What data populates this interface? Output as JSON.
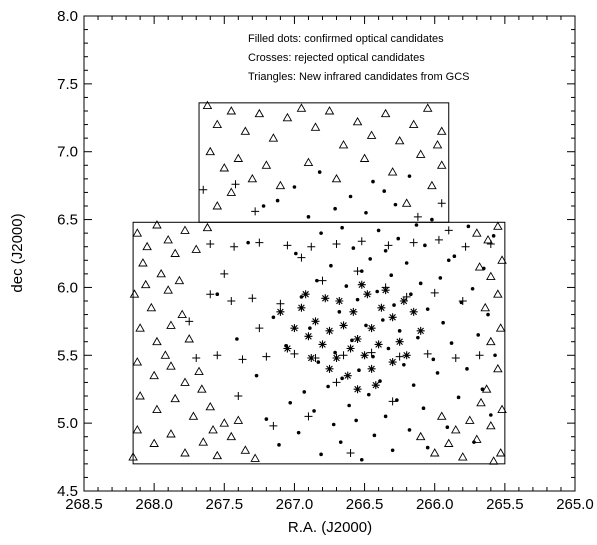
{
  "chart_data": {
    "type": "scatter",
    "title": "",
    "xlabel": "R.A. (J2000)",
    "ylabel": "dec (J2000)",
    "xlim": [
      268.5,
      265.0
    ],
    "ylim": [
      4.5,
      8.0
    ],
    "x_inverted": true,
    "x_ticks": [
      "268.5",
      "268.0",
      "267.5",
      "267.0",
      "266.5",
      "266.0",
      "265.5",
      "265.0"
    ],
    "y_ticks": [
      "4.5",
      "5.0",
      "5.5",
      "6.0",
      "6.5",
      "7.0",
      "7.5",
      "8.0"
    ],
    "annotations": [
      "Filled dots: confirmed optical candidates",
      "Crosses: rejected optical candidates",
      "Triangles: New infrared candidates from GCS"
    ],
    "survey_regions": [
      {
        "ra_min": 265.5,
        "ra_max": 268.15,
        "dec_min": 4.7,
        "dec_max": 6.48
      },
      {
        "ra_min": 265.9,
        "ra_max": 267.68,
        "dec_min": 6.48,
        "dec_max": 7.36
      }
    ],
    "grid": false,
    "legend": "annotation text, top-right",
    "series": [
      {
        "name": "Filled dots",
        "marker": "filled-circle",
        "points": [
          [
            266.52,
            4.73
          ],
          [
            266.81,
            4.77
          ],
          [
            266.3,
            4.8
          ],
          [
            266.05,
            4.82
          ],
          [
            267.11,
            4.84
          ],
          [
            266.67,
            4.86
          ],
          [
            265.72,
            4.86
          ],
          [
            266.43,
            4.91
          ],
          [
            266.97,
            4.93
          ],
          [
            266.18,
            4.95
          ],
          [
            265.91,
            4.97
          ],
          [
            266.72,
            4.99
          ],
          [
            266.56,
            5.02
          ],
          [
            267.2,
            5.03
          ],
          [
            266.35,
            5.05
          ],
          [
            265.6,
            5.06
          ],
          [
            266.86,
            5.09
          ],
          [
            266.08,
            5.11
          ],
          [
            266.61,
            5.13
          ],
          [
            267.03,
            5.15
          ],
          [
            266.27,
            5.17
          ],
          [
            265.83,
            5.19
          ],
          [
            266.47,
            5.21
          ],
          [
            266.93,
            5.23
          ],
          [
            265.66,
            5.25
          ],
          [
            266.76,
            5.27
          ],
          [
            266.15,
            5.28
          ],
          [
            266.39,
            5.31
          ],
          [
            266.66,
            5.33
          ],
          [
            267.27,
            5.35
          ],
          [
            265.98,
            5.37
          ],
          [
            266.54,
            5.39
          ],
          [
            265.77,
            5.4
          ],
          [
            266.22,
            5.43
          ],
          [
            266.83,
            5.45
          ],
          [
            266.01,
            5.47
          ],
          [
            266.44,
            5.49
          ],
          [
            265.57,
            5.5
          ],
          [
            266.71,
            5.52
          ],
          [
            266.33,
            5.55
          ],
          [
            267.06,
            5.57
          ],
          [
            265.88,
            5.59
          ],
          [
            266.59,
            5.61
          ],
          [
            266.12,
            5.63
          ],
          [
            265.69,
            5.65
          ],
          [
            266.25,
            5.68
          ],
          [
            266.89,
            5.7
          ],
          [
            266.49,
            5.72
          ],
          [
            265.94,
            5.74
          ],
          [
            266.37,
            5.76
          ],
          [
            267.15,
            5.78
          ],
          [
            265.62,
            5.8
          ],
          [
            266.68,
            5.82
          ],
          [
            266.05,
            5.84
          ],
          [
            266.29,
            5.87
          ],
          [
            265.81,
            5.89
          ],
          [
            266.55,
            5.91
          ],
          [
            266.95,
            5.93
          ],
          [
            266.17,
            5.95
          ],
          [
            266.41,
            5.97
          ],
          [
            265.73,
            5.99
          ],
          [
            266.63,
            6.01
          ],
          [
            266.1,
            6.03
          ],
          [
            266.84,
            6.05
          ],
          [
            265.96,
            6.07
          ],
          [
            266.31,
            6.09
          ],
          [
            266.52,
            6.12
          ],
          [
            265.65,
            6.14
          ],
          [
            266.74,
            6.16
          ],
          [
            266.2,
            6.18
          ],
          [
            266.46,
            6.21
          ],
          [
            265.86,
            6.23
          ],
          [
            266.99,
            6.25
          ],
          [
            266.35,
            6.27
          ],
          [
            266.58,
            6.29
          ],
          [
            266.07,
            6.31
          ],
          [
            267.33,
            6.33
          ],
          [
            266.26,
            6.36
          ],
          [
            265.58,
            6.38
          ],
          [
            266.81,
            6.4
          ],
          [
            266.4,
            6.42
          ],
          [
            266.66,
            6.44
          ],
          [
            266.13,
            6.46
          ],
          [
            266.9,
            6.52
          ],
          [
            266.49,
            6.55
          ],
          [
            266.71,
            6.58
          ],
          [
            266.28,
            6.61
          ],
          [
            267.12,
            6.64
          ],
          [
            266.6,
            6.67
          ],
          [
            266.36,
            6.71
          ],
          [
            267.0,
            6.74
          ],
          [
            266.44,
            6.78
          ],
          [
            266.18,
            6.82
          ],
          [
            266.82,
            6.85
          ],
          [
            267.22,
            6.6
          ],
          [
            265.76,
            6.45
          ],
          [
            266.02,
            6.5
          ],
          [
            265.9,
            6.2
          ],
          [
            267.41,
            5.62
          ],
          [
            267.55,
            5.95
          ]
        ]
      },
      {
        "name": "Crosses",
        "marker": "cross",
        "points": [
          [
            267.6,
            6.32
          ],
          [
            267.43,
            6.3
          ],
          [
            267.25,
            6.33
          ],
          [
            267.05,
            6.31
          ],
          [
            266.88,
            6.3
          ],
          [
            266.7,
            6.32
          ],
          [
            266.52,
            6.34
          ],
          [
            266.33,
            6.31
          ],
          [
            266.15,
            6.33
          ],
          [
            265.97,
            6.35
          ],
          [
            265.78,
            6.3
          ],
          [
            265.6,
            6.32
          ],
          [
            267.7,
            5.48
          ],
          [
            267.55,
            5.5
          ],
          [
            267.37,
            5.47
          ],
          [
            267.2,
            5.49
          ],
          [
            267.0,
            5.51
          ],
          [
            266.85,
            5.48
          ],
          [
            266.65,
            5.5
          ],
          [
            266.45,
            5.52
          ],
          [
            266.25,
            5.49
          ],
          [
            266.05,
            5.51
          ],
          [
            265.85,
            5.48
          ],
          [
            265.68,
            5.5
          ],
          [
            267.6,
            5.95
          ],
          [
            267.45,
            5.9
          ],
          [
            267.3,
            5.92
          ],
          [
            267.1,
            5.88
          ],
          [
            266.2,
            5.93
          ],
          [
            266.0,
            5.96
          ],
          [
            265.8,
            5.9
          ],
          [
            267.65,
            6.72
          ],
          [
            267.42,
            6.76
          ],
          [
            267.28,
            6.56
          ],
          [
            266.12,
            6.52
          ],
          [
            265.95,
            6.62
          ],
          [
            267.15,
            4.98
          ],
          [
            266.9,
            5.05
          ],
          [
            266.6,
            4.78
          ],
          [
            266.3,
            5.16
          ],
          [
            267.4,
            5.2
          ],
          [
            267.25,
            5.7
          ],
          [
            266.8,
            6.05
          ],
          [
            266.55,
            6.12
          ],
          [
            266.35,
            6.0
          ],
          [
            266.95,
            6.22
          ],
          [
            267.5,
            6.1
          ],
          [
            265.9,
            6.42
          ],
          [
            266.7,
            5.3
          ],
          [
            267.75,
            5.75
          ]
        ]
      },
      {
        "name": "Triangles",
        "marker": "open-triangle",
        "points": [
          [
            268.12,
            6.4
          ],
          [
            268.05,
            6.3
          ],
          [
            267.98,
            6.46
          ],
          [
            267.9,
            6.35
          ],
          [
            268.08,
            6.18
          ],
          [
            267.95,
            6.1
          ],
          [
            267.85,
            6.25
          ],
          [
            267.78,
            6.42
          ],
          [
            267.7,
            6.28
          ],
          [
            267.62,
            6.44
          ],
          [
            268.14,
            5.95
          ],
          [
            268.02,
            5.85
          ],
          [
            267.9,
            5.98
          ],
          [
            267.8,
            5.8
          ],
          [
            268.1,
            5.7
          ],
          [
            267.98,
            5.6
          ],
          [
            267.88,
            5.72
          ],
          [
            267.75,
            5.62
          ],
          [
            268.12,
            5.45
          ],
          [
            268.0,
            5.35
          ],
          [
            267.88,
            5.42
          ],
          [
            267.78,
            5.3
          ],
          [
            267.68,
            5.38
          ],
          [
            268.1,
            5.2
          ],
          [
            267.98,
            5.1
          ],
          [
            267.85,
            5.18
          ],
          [
            267.72,
            5.05
          ],
          [
            267.6,
            5.12
          ],
          [
            267.5,
            5.0
          ],
          [
            268.12,
            4.95
          ],
          [
            268.0,
            4.85
          ],
          [
            267.88,
            4.92
          ],
          [
            267.78,
            4.78
          ],
          [
            267.65,
            4.86
          ],
          [
            267.55,
            4.76
          ],
          [
            267.45,
            4.9
          ],
          [
            267.35,
            4.8
          ],
          [
            267.28,
            4.74
          ],
          [
            268.06,
            6.02
          ],
          [
            267.92,
            5.5
          ],
          [
            267.82,
            6.05
          ],
          [
            267.66,
            5.25
          ],
          [
            268.15,
            4.75
          ],
          [
            267.58,
            4.95
          ],
          [
            267.4,
            5.02
          ],
          [
            265.55,
            6.45
          ],
          [
            265.62,
            6.35
          ],
          [
            265.7,
            6.4
          ],
          [
            265.52,
            6.2
          ],
          [
            265.6,
            6.08
          ],
          [
            265.68,
            6.15
          ],
          [
            265.55,
            5.95
          ],
          [
            265.64,
            5.85
          ],
          [
            265.53,
            5.7
          ],
          [
            265.6,
            5.6
          ],
          [
            265.55,
            5.4
          ],
          [
            265.63,
            5.25
          ],
          [
            265.52,
            5.1
          ],
          [
            265.6,
            4.98
          ],
          [
            265.7,
            4.88
          ],
          [
            265.53,
            4.78
          ],
          [
            265.8,
            4.75
          ],
          [
            265.9,
            4.85
          ],
          [
            266.0,
            4.78
          ],
          [
            266.1,
            4.9
          ],
          [
            265.75,
            5.02
          ],
          [
            265.85,
            4.95
          ],
          [
            265.58,
            4.72
          ],
          [
            265.95,
            5.05
          ],
          [
            265.67,
            5.15
          ],
          [
            267.62,
            7.34
          ],
          [
            267.55,
            7.2
          ],
          [
            267.45,
            7.3
          ],
          [
            267.35,
            7.15
          ],
          [
            267.25,
            7.28
          ],
          [
            267.15,
            7.1
          ],
          [
            267.05,
            7.25
          ],
          [
            266.95,
            7.32
          ],
          [
            266.85,
            7.18
          ],
          [
            266.75,
            7.3
          ],
          [
            266.65,
            7.05
          ],
          [
            266.55,
            7.22
          ],
          [
            266.45,
            7.12
          ],
          [
            266.35,
            7.28
          ],
          [
            266.25,
            7.08
          ],
          [
            266.15,
            7.2
          ],
          [
            266.05,
            7.32
          ],
          [
            265.95,
            7.15
          ],
          [
            267.6,
            7.0
          ],
          [
            267.5,
            6.88
          ],
          [
            267.4,
            6.95
          ],
          [
            267.3,
            6.8
          ],
          [
            267.2,
            6.9
          ],
          [
            267.1,
            6.75
          ],
          [
            266.9,
            6.92
          ],
          [
            266.7,
            6.8
          ],
          [
            266.5,
            6.95
          ],
          [
            266.3,
            6.85
          ],
          [
            266.1,
            6.98
          ],
          [
            265.95,
            6.9
          ],
          [
            265.98,
            7.05
          ],
          [
            266.02,
            6.75
          ],
          [
            267.55,
            6.6
          ],
          [
            267.45,
            6.7
          ],
          [
            266.2,
            6.62
          ]
        ]
      },
      {
        "name": "Asterisks",
        "marker": "asterisk",
        "points": [
          [
            267.1,
            5.82
          ],
          [
            266.95,
            5.85
          ],
          [
            266.85,
            5.75
          ],
          [
            266.75,
            5.68
          ],
          [
            266.65,
            5.72
          ],
          [
            266.55,
            5.62
          ],
          [
            266.45,
            5.7
          ],
          [
            266.38,
            5.85
          ],
          [
            266.3,
            5.78
          ],
          [
            266.25,
            5.6
          ],
          [
            266.22,
            5.9
          ],
          [
            266.15,
            5.82
          ],
          [
            266.6,
            5.55
          ],
          [
            266.5,
            5.5
          ],
          [
            266.4,
            5.58
          ],
          [
            266.7,
            5.48
          ],
          [
            266.8,
            5.58
          ],
          [
            266.9,
            5.64
          ],
          [
            267.0,
            5.7
          ],
          [
            266.58,
            5.82
          ],
          [
            266.48,
            5.95
          ],
          [
            266.35,
            5.98
          ],
          [
            266.3,
            5.45
          ],
          [
            266.45,
            5.4
          ],
          [
            266.62,
            5.35
          ],
          [
            266.75,
            5.4
          ],
          [
            266.88,
            5.48
          ],
          [
            267.05,
            5.55
          ],
          [
            266.2,
            5.5
          ],
          [
            266.1,
            5.68
          ],
          [
            266.52,
            6.02
          ],
          [
            266.68,
            5.9
          ],
          [
            266.78,
            5.92
          ],
          [
            266.92,
            5.95
          ],
          [
            266.42,
            5.28
          ],
          [
            266.55,
            5.25
          ]
        ]
      }
    ]
  }
}
